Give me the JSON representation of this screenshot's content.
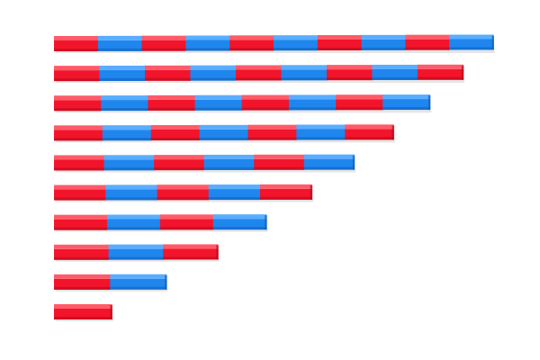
{
  "scene": {
    "subject": "number-rods",
    "colors": {
      "red": "#f2142b",
      "red_dark": "#b40a1c",
      "red_light": "#ff5a68",
      "blue": "#1f86ee",
      "blue_dark": "#0d5fb8",
      "blue_light": "#59adff",
      "background": "#ffffff"
    },
    "rods": [
      {
        "segments": 1
      },
      {
        "segments": 2
      },
      {
        "segments": 3
      },
      {
        "segments": 4
      },
      {
        "segments": 5
      },
      {
        "segments": 6
      },
      {
        "segments": 7
      },
      {
        "segments": 8
      },
      {
        "segments": 9
      },
      {
        "segments": 10
      }
    ]
  }
}
